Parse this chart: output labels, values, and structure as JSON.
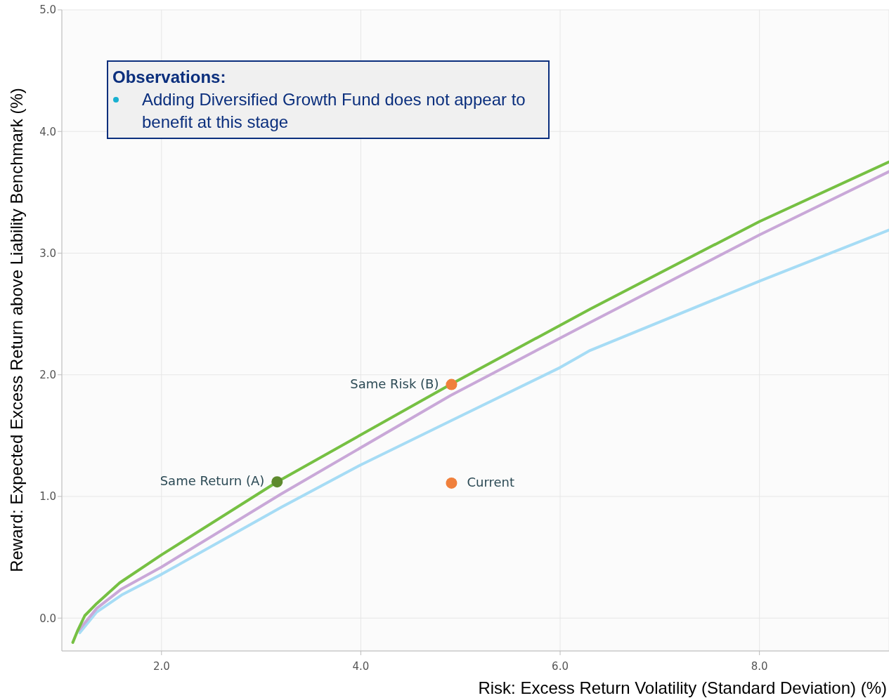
{
  "chart_data": {
    "type": "line",
    "xlabel": "Risk: Excess Return Volatility (Standard Deviation) (%)",
    "ylabel": "Reward: Expected Excess Return above Liability Benchmark (%)",
    "annotations": [
      "Observations:",
      "Adding Diversified Growth Fund does not appear to benefit at this stage"
    ],
    "xlim": [
      1.0,
      9.3
    ],
    "ylim": [
      -0.27,
      5.0
    ],
    "xticks": [
      {
        "value": 2,
        "label": "2.0"
      },
      {
        "value": 4,
        "label": "4.0"
      },
      {
        "value": 6,
        "label": "6.0"
      },
      {
        "value": 8,
        "label": "8.0"
      }
    ],
    "yticks": [
      {
        "value": 0,
        "label": "0.0"
      },
      {
        "value": 1,
        "label": "1.0"
      },
      {
        "value": 2,
        "label": "2.0"
      },
      {
        "value": 3,
        "label": "3.0"
      },
      {
        "value": 4,
        "label": "4.0"
      },
      {
        "value": 5,
        "label": "5.0"
      }
    ],
    "grid": true,
    "legend": false,
    "line_style": "solid",
    "series": [
      {
        "type": "line",
        "color": "#a6dcf5",
        "x": [
          1.18,
          1.35,
          1.6,
          2.0,
          3.2,
          4.0,
          4.9,
          6.0,
          6.3,
          8.0,
          9.3
        ],
        "values": [
          -0.12,
          0.05,
          0.19,
          0.36,
          0.91,
          1.26,
          1.62,
          2.06,
          2.2,
          2.77,
          3.19
        ]
      },
      {
        "type": "line",
        "color": "#c9a8d8",
        "x": [
          1.17,
          1.35,
          1.6,
          2.0,
          3.2,
          4.9,
          6.3,
          8.0,
          9.3
        ],
        "values": [
          -0.1,
          0.08,
          0.24,
          0.42,
          1.02,
          1.83,
          2.43,
          3.15,
          3.67
        ]
      },
      {
        "type": "line",
        "color": "#76c043",
        "x": [
          1.11,
          1.16,
          1.23,
          1.35,
          1.58,
          2.0,
          3.16,
          4.9,
          6.3,
          8.0,
          9.3
        ],
        "values": [
          -0.2,
          -0.1,
          0.02,
          0.12,
          0.29,
          0.52,
          1.12,
          1.92,
          2.54,
          3.26,
          3.75
        ]
      },
      {
        "type": "scatter",
        "name": "Same Return (A)",
        "color": "#5e8a2e",
        "marker": "circle",
        "x": [
          3.16
        ],
        "values": [
          1.12
        ]
      },
      {
        "type": "scatter",
        "name": "Same Risk (B)",
        "color": "#f0803c",
        "marker": "circle",
        "x": [
          4.91
        ],
        "values": [
          1.92
        ]
      },
      {
        "type": "scatter",
        "name": "Current",
        "color": "#f0803c",
        "marker": "circle",
        "x": [
          4.91
        ],
        "values": [
          1.11
        ]
      }
    ]
  }
}
